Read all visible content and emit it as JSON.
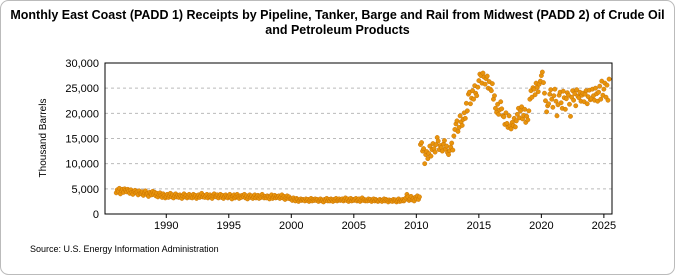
{
  "chart_data": {
    "type": "scatter",
    "title": "Monthly East Coast (PADD 1) Receipts by Pipeline, Tanker, Barge and Rail from Midwest (PADD 2) of Crude Oil and Petroleum Products",
    "y_label": "Thousand Barrels",
    "source": "Source: U.S. Energy Information Administration",
    "color": "#e8940c",
    "grid": true,
    "xlim": [
      1985.1,
      2025.65
    ],
    "xticks": [
      1990,
      1995,
      2000,
      2005,
      2010,
      2015,
      2020,
      2025
    ],
    "ylim": [
      0,
      30000
    ],
    "yticks": [
      0,
      {
        "value": 5000,
        "label": "5,000"
      },
      {
        "value": 10000,
        "label": "10,000"
      },
      {
        "value": 15000,
        "label": "15,000"
      },
      {
        "value": 20000,
        "label": "20,000"
      },
      {
        "value": 25000,
        "label": "25,000"
      },
      {
        "value": 30000,
        "label": "30,000"
      }
    ],
    "x": [
      1986,
      1986.08,
      1986.17,
      1986.25,
      1986.33,
      1986.42,
      1986.5,
      1986.58,
      1986.67,
      1986.75,
      1986.83,
      1986.92,
      1987,
      1987.08,
      1987.17,
      1987.25,
      1987.33,
      1987.42,
      1987.5,
      1987.58,
      1987.67,
      1987.75,
      1987.83,
      1987.92,
      1988,
      1988.08,
      1988.17,
      1988.25,
      1988.33,
      1988.42,
      1988.5,
      1988.58,
      1988.67,
      1988.75,
      1988.83,
      1988.92,
      1989,
      1989.08,
      1989.17,
      1989.25,
      1989.33,
      1989.42,
      1989.5,
      1989.58,
      1989.67,
      1989.75,
      1989.83,
      1989.92,
      1990,
      1990.08,
      1990.17,
      1990.25,
      1990.33,
      1990.42,
      1990.5,
      1990.58,
      1990.67,
      1990.75,
      1990.83,
      1990.92,
      1991,
      1991.08,
      1991.17,
      1991.25,
      1991.33,
      1991.42,
      1991.5,
      1991.58,
      1991.67,
      1991.75,
      1991.83,
      1991.92,
      1992,
      1992.08,
      1992.17,
      1992.25,
      1992.33,
      1992.42,
      1992.5,
      1992.58,
      1992.67,
      1992.75,
      1992.83,
      1992.92,
      1993,
      1993.08,
      1993.17,
      1993.25,
      1993.33,
      1993.42,
      1993.5,
      1993.58,
      1993.67,
      1993.75,
      1993.83,
      1993.92,
      1994,
      1994.08,
      1994.17,
      1994.25,
      1994.33,
      1994.42,
      1994.5,
      1994.58,
      1994.67,
      1994.75,
      1994.83,
      1994.92,
      1995,
      1995.08,
      1995.17,
      1995.25,
      1995.33,
      1995.42,
      1995.5,
      1995.58,
      1995.67,
      1995.75,
      1995.83,
      1995.92,
      1996,
      1996.08,
      1996.17,
      1996.25,
      1996.33,
      1996.42,
      1996.5,
      1996.58,
      1996.67,
      1996.75,
      1996.83,
      1996.92,
      1997,
      1997.08,
      1997.17,
      1997.25,
      1997.33,
      1997.42,
      1997.5,
      1997.58,
      1997.67,
      1997.75,
      1997.83,
      1997.92,
      1998,
      1998.08,
      1998.17,
      1998.25,
      1998.33,
      1998.42,
      1998.5,
      1998.58,
      1998.67,
      1998.75,
      1998.83,
      1998.92,
      1999,
      1999.08,
      1999.17,
      1999.25,
      1999.33,
      1999.42,
      1999.5,
      1999.58,
      1999.67,
      1999.75,
      1999.83,
      1999.92,
      2000,
      2000.08,
      2000.17,
      2000.25,
      2000.33,
      2000.42,
      2000.5,
      2000.58,
      2000.67,
      2000.75,
      2000.83,
      2000.92,
      2001,
      2001.08,
      2001.17,
      2001.25,
      2001.33,
      2001.42,
      2001.5,
      2001.58,
      2001.67,
      2001.75,
      2001.83,
      2001.92,
      2002,
      2002.08,
      2002.17,
      2002.25,
      2002.33,
      2002.42,
      2002.5,
      2002.58,
      2002.67,
      2002.75,
      2002.83,
      2002.92,
      2003,
      2003.08,
      2003.17,
      2003.25,
      2003.33,
      2003.42,
      2003.5,
      2003.58,
      2003.67,
      2003.75,
      2003.83,
      2003.92,
      2004,
      2004.08,
      2004.17,
      2004.25,
      2004.33,
      2004.42,
      2004.5,
      2004.58,
      2004.67,
      2004.75,
      2004.83,
      2004.92,
      2005,
      2005.08,
      2005.17,
      2005.25,
      2005.33,
      2005.42,
      2005.5,
      2005.58,
      2005.67,
      2005.75,
      2005.83,
      2005.92,
      2006,
      2006.08,
      2006.17,
      2006.25,
      2006.33,
      2006.42,
      2006.5,
      2006.58,
      2006.67,
      2006.75,
      2006.83,
      2006.92,
      2007,
      2007.08,
      2007.17,
      2007.25,
      2007.33,
      2007.42,
      2007.5,
      2007.58,
      2007.67,
      2007.75,
      2007.83,
      2007.92,
      2008,
      2008.08,
      2008.17,
      2008.25,
      2008.33,
      2008.42,
      2008.5,
      2008.58,
      2008.67,
      2008.75,
      2008.83,
      2008.92,
      2009,
      2009.08,
      2009.17,
      2009.25,
      2009.33,
      2009.42,
      2009.5,
      2009.58,
      2009.67,
      2009.75,
      2009.83,
      2009.92,
      2010,
      2010.08,
      2010.17,
      2010.25,
      2010.33,
      2010.42,
      2010.5,
      2010.58,
      2010.67,
      2010.75,
      2010.83,
      2010.92,
      2011,
      2011.08,
      2011.17,
      2011.25,
      2011.33,
      2011.42,
      2011.5,
      2011.58,
      2011.67,
      2011.75,
      2011.83,
      2011.92,
      2012,
      2012.08,
      2012.17,
      2012.25,
      2012.33,
      2012.42,
      2012.5,
      2012.58,
      2012.67,
      2012.75,
      2012.83,
      2012.92,
      2013,
      2013.08,
      2013.17,
      2013.25,
      2013.33,
      2013.42,
      2013.5,
      2013.58,
      2013.67,
      2013.75,
      2013.83,
      2013.92,
      2014,
      2014.08,
      2014.17,
      2014.25,
      2014.33,
      2014.42,
      2014.5,
      2014.58,
      2014.67,
      2014.75,
      2014.83,
      2014.92,
      2015,
      2015.08,
      2015.17,
      2015.25,
      2015.33,
      2015.42,
      2015.5,
      2015.58,
      2015.67,
      2015.75,
      2015.83,
      2015.92,
      2016,
      2016.08,
      2016.17,
      2016.25,
      2016.33,
      2016.42,
      2016.5,
      2016.58,
      2016.67,
      2016.75,
      2016.83,
      2016.92,
      2017,
      2017.08,
      2017.17,
      2017.25,
      2017.33,
      2017.42,
      2017.5,
      2017.58,
      2017.67,
      2017.75,
      2017.83,
      2017.92,
      2018,
      2018.08,
      2018.17,
      2018.25,
      2018.33,
      2018.42,
      2018.5,
      2018.58,
      2018.67,
      2018.75,
      2018.83,
      2018.92,
      2019,
      2019.08,
      2019.17,
      2019.25,
      2019.33,
      2019.42,
      2019.5,
      2019.58,
      2019.67,
      2019.75,
      2019.83,
      2019.92,
      2020,
      2020.08,
      2020.17,
      2020.25,
      2020.33,
      2020.42,
      2020.5,
      2020.58,
      2020.67,
      2020.75,
      2020.83,
      2020.92,
      2021,
      2021.08,
      2021.17,
      2021.25,
      2021.33,
      2021.42,
      2021.5,
      2021.58,
      2021.67,
      2021.75,
      2021.83,
      2021.92,
      2022,
      2022.08,
      2022.17,
      2022.25,
      2022.33,
      2022.42,
      2022.5,
      2022.58,
      2022.67,
      2022.75,
      2022.83,
      2022.92,
      2023,
      2023.08,
      2023.17,
      2023.25,
      2023.33,
      2023.42,
      2023.5,
      2023.58,
      2023.67,
      2023.75,
      2023.83,
      2023.92,
      2024,
      2024.08,
      2024.17,
      2024.25,
      2024.33,
      2024.42,
      2024.5,
      2024.58,
      2024.67,
      2024.75,
      2024.83,
      2024.92,
      2025,
      2025.08,
      2025.17,
      2025.25,
      2025.33,
      2025.42
    ],
    "values": [
      4200,
      4800,
      4500,
      5100,
      4000,
      4600,
      4900,
      4300,
      5000,
      4700,
      4400,
      4900,
      4600,
      4100,
      4800,
      4300,
      3900,
      4500,
      4700,
      4200,
      4400,
      3800,
      4600,
      4100,
      4000,
      4400,
      3700,
      4200,
      4600,
      3900,
      4100,
      3500,
      4300,
      4000,
      3800,
      4500,
      3900,
      4300,
      3600,
      4100,
      3400,
      3800,
      4200,
      3700,
      3300,
      4000,
      3600,
      3200,
      3500,
      3900,
      3300,
      3700,
      4100,
      3400,
      3800,
      3200,
      3600,
      4000,
      3400,
      3700,
      3300,
      3800,
      3500,
      3100,
      3600,
      4000,
      3400,
      3700,
      3200,
      3500,
      3900,
      3300,
      3600,
      3200,
      3900,
      3400,
      3700,
      3100,
      3500,
      3800,
      3300,
      3600,
      4100,
      3400,
      3700,
      3300,
      3600,
      3900,
      3200,
      3500,
      3800,
      3400,
      3100,
      3600,
      4000,
      3500,
      3400,
      3800,
      3200,
      3600,
      3900,
      3300,
      3700,
      3100,
      3500,
      3800,
      3400,
      3200,
      3500,
      3900,
      3300,
      3000,
      3600,
      3800,
      3200,
      3500,
      3900,
      3400,
      3100,
      3600,
      3300,
      3700,
      3500,
      3900,
      3200,
      3600,
      3000,
      3400,
      3800,
      3300,
      3600,
      3100,
      3400,
      3800,
      3200,
      3500,
      3700,
      3100,
      3600,
      3300,
      3900,
      3400,
      3200,
      3500,
      3200,
      3600,
      3400,
      3000,
      3500,
      3800,
      3100,
      3400,
      3700,
      3200,
      3500,
      3300,
      3600,
      3100,
      3400,
      3800,
      3200,
      3500,
      2900,
      3300,
      3600,
      3100,
      3400,
      3000,
      3000,
      2700,
      3200,
      2800,
      2600,
      3100,
      2900,
      2500,
      2800,
      3000,
      2700,
      2900,
      2800,
      2600,
      3000,
      2700,
      2900,
      2500,
      2800,
      3100,
      2600,
      2900,
      2700,
      3000,
      2700,
      2900,
      2500,
      2800,
      3000,
      2600,
      2800,
      2400,
      2900,
      2700,
      3100,
      2600,
      2900,
      2600,
      3000,
      2800,
      2500,
      2900,
      2700,
      3100,
      2600,
      2800,
      3000,
      2700,
      2800,
      3000,
      2600,
      2900,
      3200,
      2700,
      3000,
      2500,
      2800,
      3100,
      2600,
      2900,
      2700,
      2900,
      3100,
      2600,
      2800,
      3000,
      2500,
      2800,
      3200,
      2700,
      2900,
      2600,
      2800,
      2600,
      3000,
      2700,
      2900,
      2500,
      2800,
      3000,
      2600,
      2900,
      2700,
      2500,
      2600,
      2900,
      2700,
      2500,
      2800,
      3000,
      2600,
      2900,
      2700,
      2400,
      2800,
      2600,
      2700,
      2500,
      2900,
      2600,
      2800,
      2400,
      2700,
      3000,
      2500,
      2800,
      2600,
      2900,
      2600,
      2800,
      3200,
      3900,
      3400,
      2700,
      3000,
      3500,
      2800,
      3100,
      2600,
      3300,
      3000,
      3600,
      2900,
      3400,
      13800,
      14200,
      12500,
      13000,
      10000,
      11800,
      12400,
      11000,
      12000,
      13500,
      11500,
      12800,
      14000,
      13000,
      12300,
      13800,
      15200,
      14500,
      12800,
      13600,
      13200,
      12500,
      13900,
      14600,
      12900,
      13500,
      12200,
      11800,
      12600,
      13300,
      14100,
      12700,
      15500,
      16800,
      17900,
      18500,
      16400,
      17200,
      19500,
      18300,
      17600,
      18800,
      20100,
      19000,
      22000,
      20500,
      23800,
      24200,
      21900,
      23000,
      24500,
      22800,
      25500,
      24000,
      23500,
      25200,
      26500,
      27800,
      27500,
      26000,
      28000,
      27200,
      25800,
      26900,
      27400,
      25000,
      26300,
      24800,
      24500,
      25900,
      22800,
      23500,
      21000,
      20200,
      21800,
      19800,
      20700,
      22300,
      20900,
      19500,
      19300,
      17800,
      20100,
      18000,
      17200,
      19500,
      17500,
      16900,
      18200,
      17600,
      19000,
      17300,
      18500,
      19800,
      21000,
      19100,
      20500,
      21300,
      18900,
      19600,
      20800,
      18200,
      19400,
      18700,
      20500,
      22800,
      24500,
      23200,
      25100,
      24800,
      23700,
      26000,
      25200,
      24300,
      25800,
      26400,
      27500,
      28200,
      26100,
      24000,
      22500,
      20300,
      21500,
      21900,
      23800,
      24700,
      22800,
      21200,
      23500,
      24800,
      22400,
      19500,
      21700,
      23600,
      24200,
      22100,
      21000,
      24400,
      23100,
      20800,
      22900,
      24100,
      23600,
      21800,
      19400,
      23200,
      24500,
      22600,
      23900,
      21500,
      24700,
      23400,
      23100,
      24200,
      22400,
      23600,
      24000,
      22300,
      23800,
      24500,
      21900,
      23300,
      24600,
      22700,
      22900,
      24800,
      23500,
      22600,
      25000,
      23900,
      22400,
      24200,
      25400,
      22800,
      26400,
      23600,
      24800,
      26000,
      23200,
      25600,
      22600,
      26800
    ]
  }
}
